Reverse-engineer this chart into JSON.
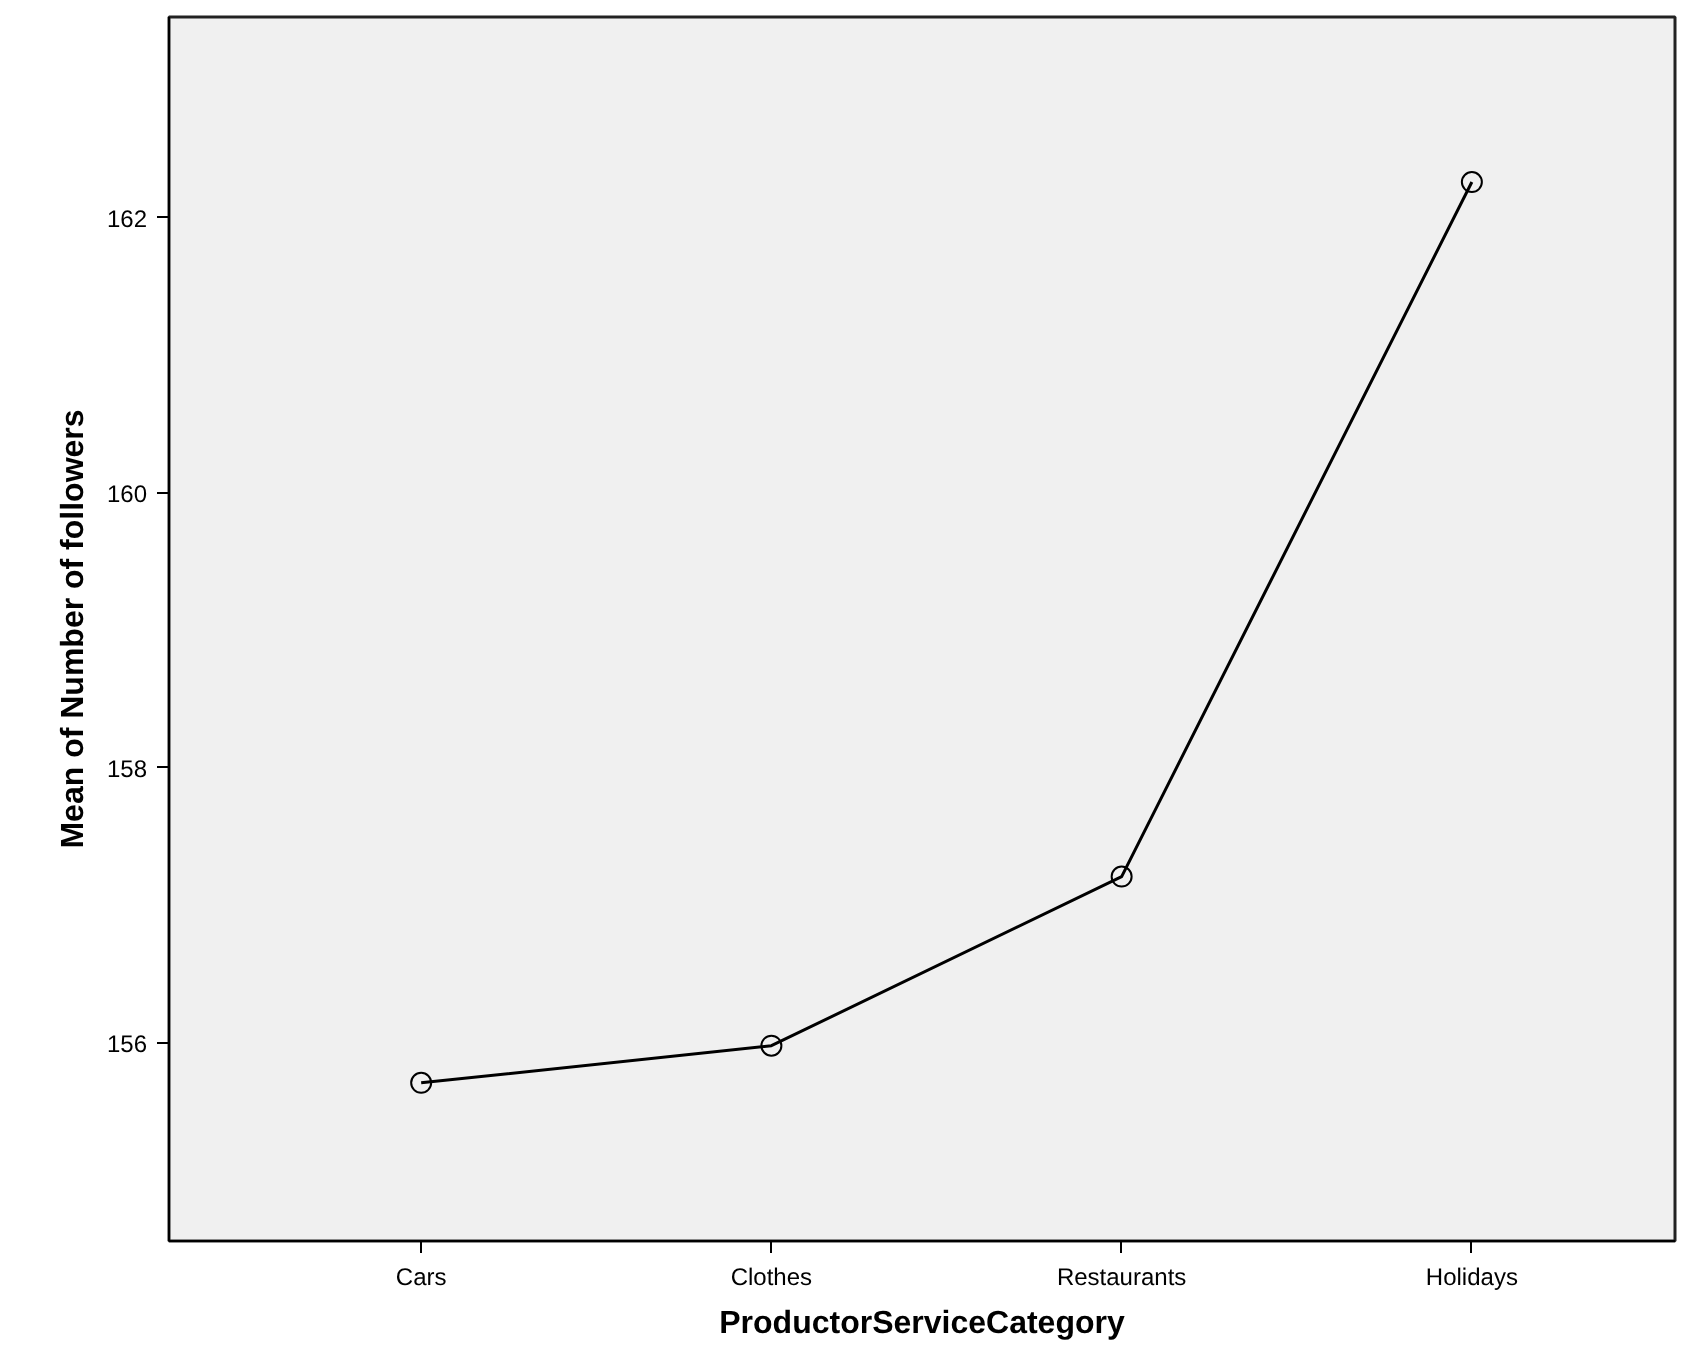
{
  "chart_data": {
    "type": "line",
    "xlabel": "ProductorServiceCategory",
    "ylabel": "Mean of Number of followers",
    "categories": [
      "Cars",
      "Clothes",
      "Restaurants",
      "Holidays"
    ],
    "series": [
      {
        "color": "#000000",
        "values": [
          155.71,
          155.98,
          157.21,
          162.26
        ]
      }
    ],
    "ylim": [
      154.56,
      163.46
    ],
    "yticks": [
      156,
      158,
      160,
      162
    ],
    "grid": false,
    "marker": "circle",
    "line_style": "solid"
  }
}
